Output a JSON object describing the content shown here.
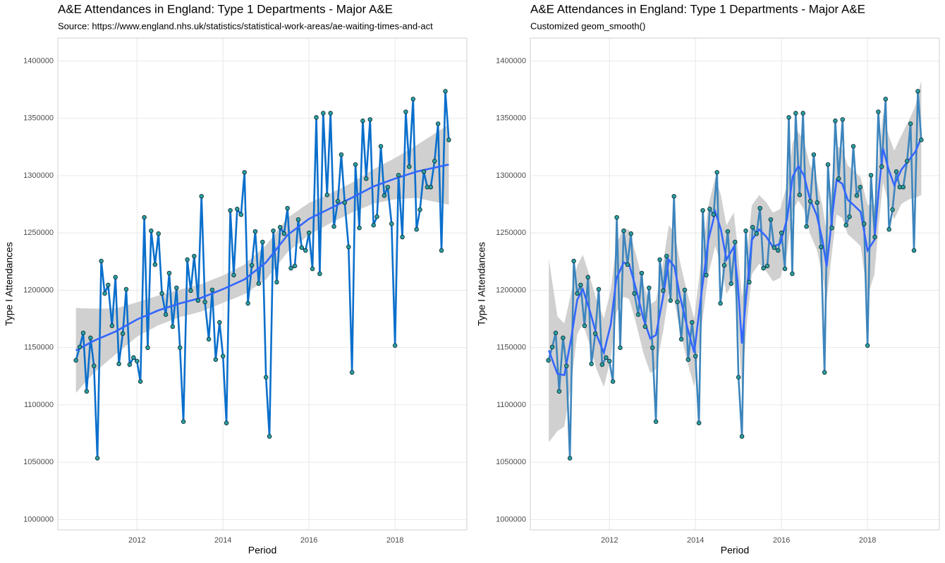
{
  "chart_data": [
    {
      "type": "line",
      "title": "A&E Attendances in England: Type 1 Departments - Major A&E",
      "subtitle": "Source: https://www.england.nhs.uk/statistics/statistical-work-areas/ae-waiting-times-and-act",
      "x_label": "Period",
      "y_label": "Type I Attendances",
      "xlim": [
        2010.16,
        2019.67
      ],
      "xticks": [
        2012,
        2014,
        2016,
        2018
      ],
      "ylim": [
        991000,
        1420000
      ],
      "yticks": [
        1000000,
        1050000,
        1100000,
        1150000,
        1200000,
        1250000,
        1300000,
        1350000,
        1400000
      ],
      "grid": true,
      "x": [
        2010.58,
        2010.67,
        2010.75,
        2010.83,
        2010.92,
        2011,
        2011.08,
        2011.17,
        2011.25,
        2011.33,
        2011.42,
        2011.5,
        2011.58,
        2011.67,
        2011.75,
        2011.83,
        2011.92,
        2012,
        2012.08,
        2012.17,
        2012.25,
        2012.33,
        2012.42,
        2012.5,
        2012.58,
        2012.67,
        2012.75,
        2012.83,
        2012.92,
        2013,
        2013.08,
        2013.17,
        2013.25,
        2013.33,
        2013.42,
        2013.5,
        2013.58,
        2013.67,
        2013.75,
        2013.83,
        2013.92,
        2014,
        2014.08,
        2014.17,
        2014.25,
        2014.33,
        2014.42,
        2014.5,
        2014.58,
        2014.67,
        2014.75,
        2014.83,
        2014.92,
        2015,
        2015.08,
        2015.17,
        2015.25,
        2015.33,
        2015.42,
        2015.5,
        2015.58,
        2015.67,
        2015.75,
        2015.83,
        2015.92,
        2016,
        2016.08,
        2016.17,
        2016.25,
        2016.33,
        2016.42,
        2016.5,
        2016.58,
        2016.67,
        2016.75,
        2016.83,
        2016.92,
        2017,
        2017.08,
        2017.17,
        2017.25,
        2017.33,
        2017.42,
        2017.5,
        2017.58,
        2017.67,
        2017.75,
        2017.83,
        2017.92,
        2018,
        2018.08,
        2018.17,
        2018.25,
        2018.33,
        2018.42,
        2018.5,
        2018.58,
        2018.67,
        2018.75,
        2018.83,
        2018.92,
        2019,
        2019.08,
        2019.17,
        2019.25
      ],
      "series": [
        {
          "color": "#0a6fcc",
          "marker_color": "#2aa0a0",
          "values": [
            1138900,
            1150500,
            1162800,
            1111800,
            1158500,
            1134000,
            1053500,
            1225500,
            1197200,
            1204600,
            1169000,
            1211400,
            1135800,
            1162200,
            1200900,
            1135200,
            1141300,
            1138200,
            1120400,
            1263600,
            1149900,
            1251900,
            1222400,
            1249400,
            1197200,
            1178800,
            1215000,
            1168300,
            1202100,
            1149900,
            1085400,
            1226700,
            1199700,
            1229800,
            1191100,
            1282000,
            1189800,
            1157300,
            1200300,
            1139500,
            1172000,
            1142500,
            1084200,
            1269700,
            1213200,
            1270900,
            1266000,
            1302900,
            1188600,
            1221800,
            1251300,
            1205800,
            1242100,
            1124100,
            1072500,
            1251900,
            1207100,
            1255000,
            1249400,
            1271600,
            1219300,
            1221200,
            1261700,
            1237200,
            1234700,
            1250100,
            1218700,
            1350800,
            1214400,
            1354500,
            1283200,
            1354500,
            1255600,
            1277700,
            1318300,
            1276500,
            1237800,
            1128400,
            1309700,
            1254400,
            1347800,
            1297400,
            1349000,
            1256800,
            1264200,
            1325600,
            1282600,
            1290000,
            1258000,
            1151800,
            1300400,
            1246400,
            1355700,
            1307800,
            1366800,
            1253100,
            1270300,
            1303500,
            1290000,
            1290000,
            1312700,
            1345300,
            1234700,
            1373600,
            1331200
          ]
        }
      ],
      "smooth": {
        "color": "#3366ff",
        "fill": "#c8c8c8",
        "x": [
          2010.58,
          2011,
          2011.5,
          2012,
          2012.5,
          2013,
          2013.5,
          2014,
          2014.5,
          2015,
          2015.5,
          2016,
          2016.5,
          2017,
          2017.5,
          2018,
          2018.5,
          2019.25
        ],
        "values": [
          1147500,
          1156000,
          1164000,
          1174500,
          1182500,
          1188600,
          1193500,
          1201000,
          1209500,
          1224300,
          1248200,
          1262300,
          1271600,
          1280800,
          1290600,
          1297400,
          1303500,
          1309700
        ],
        "lower": [
          1110500,
          1128000,
          1144000,
          1159500,
          1169500,
          1176600,
          1181500,
          1189000,
          1196500,
          1209300,
          1233200,
          1248300,
          1258600,
          1267800,
          1275600,
          1279400,
          1280500,
          1274700
        ],
        "upper": [
          1184500,
          1184000,
          1184000,
          1189500,
          1195500,
          1200600,
          1205500,
          1213000,
          1222500,
          1239300,
          1263200,
          1276300,
          1284600,
          1293800,
          1305600,
          1315400,
          1326500,
          1344700
        ]
      }
    },
    {
      "type": "line",
      "title": "A&E Attendances in England: Type 1 Departments - Major A&E",
      "subtitle": "Customized geom_smooth()",
      "x_label": "Period",
      "y_label": "Type I Attendances",
      "xlim": [
        2010.16,
        2019.67
      ],
      "xticks": [
        2012,
        2014,
        2016,
        2018
      ],
      "ylim": [
        991000,
        1420000
      ],
      "yticks": [
        1000000,
        1050000,
        1100000,
        1150000,
        1200000,
        1250000,
        1300000,
        1350000,
        1400000
      ],
      "grid": true,
      "x": [
        2010.58,
        2010.67,
        2010.75,
        2010.83,
        2010.92,
        2011,
        2011.08,
        2011.17,
        2011.25,
        2011.33,
        2011.42,
        2011.5,
        2011.58,
        2011.67,
        2011.75,
        2011.83,
        2011.92,
        2012,
        2012.08,
        2012.17,
        2012.25,
        2012.33,
        2012.42,
        2012.5,
        2012.58,
        2012.67,
        2012.75,
        2012.83,
        2012.92,
        2013,
        2013.08,
        2013.17,
        2013.25,
        2013.33,
        2013.42,
        2013.5,
        2013.58,
        2013.67,
        2013.75,
        2013.83,
        2013.92,
        2014,
        2014.08,
        2014.17,
        2014.25,
        2014.33,
        2014.42,
        2014.5,
        2014.58,
        2014.67,
        2014.75,
        2014.83,
        2014.92,
        2015,
        2015.08,
        2015.17,
        2015.25,
        2015.33,
        2015.42,
        2015.5,
        2015.58,
        2015.67,
        2015.75,
        2015.83,
        2015.92,
        2016,
        2016.08,
        2016.17,
        2016.25,
        2016.33,
        2016.42,
        2016.5,
        2016.58,
        2016.67,
        2016.75,
        2016.83,
        2016.92,
        2017,
        2017.08,
        2017.17,
        2017.25,
        2017.33,
        2017.42,
        2017.5,
        2017.58,
        2017.67,
        2017.75,
        2017.83,
        2017.92,
        2018,
        2018.08,
        2018.17,
        2018.25,
        2018.33,
        2018.42,
        2018.5,
        2018.58,
        2018.67,
        2018.75,
        2018.83,
        2018.92,
        2019,
        2019.08,
        2019.17,
        2019.25
      ],
      "series": [
        {
          "color": "#3d85bd",
          "marker_color": "#2aa0a0",
          "values": [
            1138900,
            1150500,
            1162800,
            1111800,
            1158500,
            1134000,
            1053500,
            1225500,
            1197200,
            1204600,
            1169000,
            1211400,
            1135800,
            1162200,
            1200900,
            1135200,
            1141300,
            1138200,
            1120400,
            1263600,
            1149900,
            1251900,
            1222400,
            1249400,
            1197200,
            1178800,
            1215000,
            1168300,
            1202100,
            1149900,
            1085400,
            1226700,
            1199700,
            1229800,
            1191100,
            1282000,
            1189800,
            1157300,
            1200300,
            1139500,
            1172000,
            1142500,
            1084200,
            1269700,
            1213200,
            1270900,
            1266000,
            1302900,
            1188600,
            1221800,
            1251300,
            1205800,
            1242100,
            1124100,
            1072500,
            1251900,
            1207100,
            1255000,
            1249400,
            1271600,
            1219300,
            1221200,
            1261700,
            1237200,
            1234700,
            1250100,
            1218700,
            1350800,
            1214400,
            1354500,
            1283200,
            1354500,
            1255600,
            1277700,
            1318300,
            1276500,
            1237800,
            1128400,
            1309700,
            1254400,
            1347800,
            1297400,
            1349000,
            1256800,
            1264200,
            1325600,
            1282600,
            1290000,
            1258000,
            1151800,
            1300400,
            1246400,
            1355700,
            1307800,
            1366800,
            1253100,
            1270300,
            1303500,
            1290000,
            1290000,
            1312700,
            1345300,
            1234700,
            1373600,
            1331200
          ]
        }
      ],
      "smooth": {
        "color": "#3366ff",
        "fill": "#c8c8c8",
        "x": [
          2010.59,
          2010.79,
          2010.95,
          2011.11,
          2011.25,
          2011.38,
          2011.54,
          2011.7,
          2011.87,
          2012.03,
          2012.16,
          2012.33,
          2012.46,
          2012.62,
          2012.79,
          2012.95,
          2013.08,
          2013.25,
          2013.38,
          2013.51,
          2013.64,
          2013.8,
          2013.97,
          2014.13,
          2014.3,
          2014.46,
          2014.59,
          2014.72,
          2014.89,
          2014.98,
          2015.08,
          2015.18,
          2015.31,
          2015.48,
          2015.64,
          2015.8,
          2015.97,
          2016.13,
          2016.26,
          2016.39,
          2016.52,
          2016.66,
          2016.82,
          2016.95,
          2017.05,
          2017.18,
          2017.28,
          2017.41,
          2017.54,
          2017.67,
          2017.84,
          2018,
          2018.16,
          2018.26,
          2018.36,
          2018.49,
          2018.62,
          2018.79,
          2018.98,
          2019.11,
          2019.25
        ],
        "values": [
          1147500,
          1127200,
          1126000,
          1157900,
          1191700,
          1200900,
          1182500,
          1161000,
          1145600,
          1170200,
          1210100,
          1224300,
          1222400,
          1200900,
          1175100,
          1157900,
          1161000,
          1194800,
          1226700,
          1220600,
          1194800,
          1169000,
          1145600,
          1194800,
          1243900,
          1268500,
          1253100,
          1226700,
          1237800,
          1207100,
          1153600,
          1194800,
          1243900,
          1253100,
          1247000,
          1237800,
          1240800,
          1262300,
          1299200,
          1308400,
          1300400,
          1279600,
          1265400,
          1243900,
          1220600,
          1265400,
          1296100,
          1293100,
          1278900,
          1274600,
          1268500,
          1234700,
          1243900,
          1286900,
          1323800,
          1305400,
          1291800,
          1305400,
          1314600,
          1320700,
          1333000
        ],
        "lower": [
          1067500,
          1077200,
          1081000,
          1117900,
          1161700,
          1170900,
          1152500,
          1131000,
          1115600,
          1140200,
          1180100,
          1194300,
          1192400,
          1170900,
          1145100,
          1127900,
          1131000,
          1164800,
          1196700,
          1190600,
          1164800,
          1139000,
          1115600,
          1164800,
          1213900,
          1238500,
          1223100,
          1196700,
          1207800,
          1177100,
          1113600,
          1164800,
          1213900,
          1223100,
          1217000,
          1207800,
          1210800,
          1232300,
          1269200,
          1278400,
          1270400,
          1249600,
          1235400,
          1213900,
          1190600,
          1235400,
          1266100,
          1263100,
          1248900,
          1244600,
          1238500,
          1194700,
          1213900,
          1256900,
          1293800,
          1275400,
          1261800,
          1275400,
          1279600,
          1280700,
          1283000
        ],
        "upper": [
          1227500,
          1177200,
          1171000,
          1197900,
          1221700,
          1230900,
          1212500,
          1191000,
          1175600,
          1200200,
          1240100,
          1254300,
          1252400,
          1230900,
          1205100,
          1187900,
          1191000,
          1224800,
          1256700,
          1250600,
          1224800,
          1199000,
          1175600,
          1224800,
          1273900,
          1298500,
          1283100,
          1256700,
          1267800,
          1237100,
          1193600,
          1224800,
          1273900,
          1283100,
          1277000,
          1267800,
          1270800,
          1292300,
          1329200,
          1338400,
          1330400,
          1309600,
          1295400,
          1273900,
          1250600,
          1295400,
          1326100,
          1323100,
          1308900,
          1304600,
          1298500,
          1274700,
          1273900,
          1316900,
          1353800,
          1335400,
          1321800,
          1335400,
          1349600,
          1360700,
          1383000
        ]
      }
    }
  ]
}
